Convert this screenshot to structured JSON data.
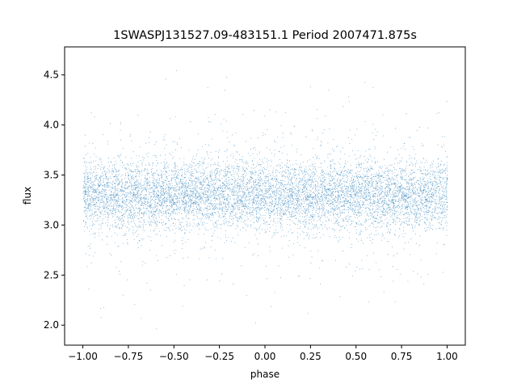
{
  "chart_data": {
    "type": "scatter",
    "title": "1SWASPJ131527.09-483151.1 Period 2007471.875s",
    "xlabel": "phase",
    "ylabel": "flux",
    "xlim": [
      -1.1,
      1.1
    ],
    "ylim": [
      1.8,
      4.78
    ],
    "xticks": [
      -1.0,
      -0.75,
      -0.5,
      -0.25,
      0.0,
      0.25,
      0.5,
      0.75,
      1.0
    ],
    "xtick_labels": [
      "−1.00",
      "−0.75",
      "−0.50",
      "−0.25",
      "0.00",
      "0.25",
      "0.50",
      "0.75",
      "1.00"
    ],
    "yticks": [
      2.0,
      2.5,
      3.0,
      3.5,
      4.0,
      4.5
    ],
    "ytick_labels": [
      "2.0",
      "2.5",
      "3.0",
      "3.5",
      "4.0",
      "4.5"
    ],
    "grid": false,
    "legend": "none",
    "color": "#1f77b4",
    "series": [
      {
        "x_range": [
          -1.0,
          1.0
        ],
        "y_center": 3.3,
        "y_spread_core": [
          3.0,
          3.6
        ],
        "y_extent": [
          1.93,
          4.62
        ]
      }
    ]
  }
}
